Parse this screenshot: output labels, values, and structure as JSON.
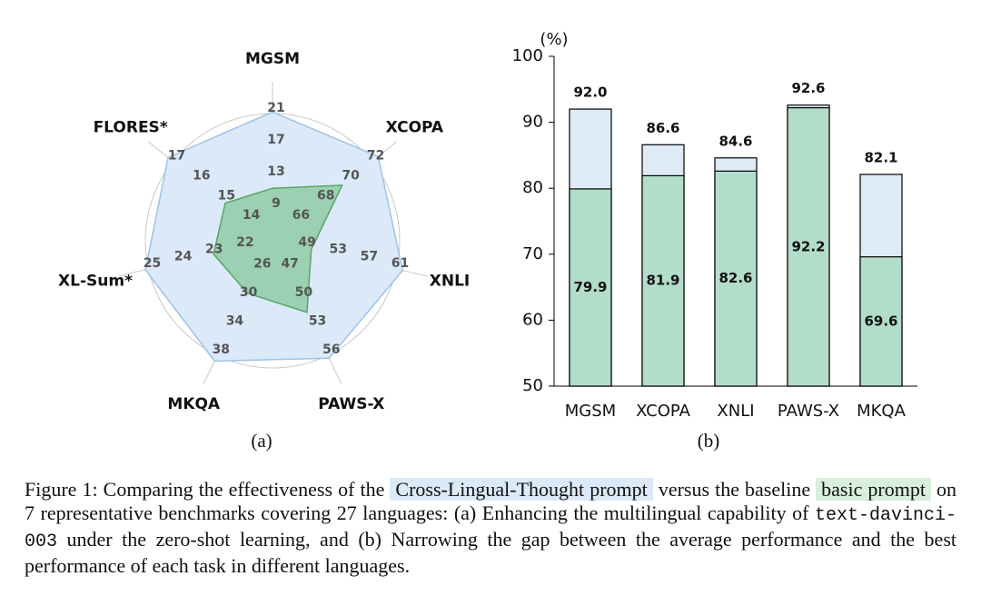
{
  "chart_data": [
    {
      "type": "radar",
      "label": "(a)",
      "categories": [
        "MGSM",
        "XCOPA",
        "XNLI",
        "PAWS-X",
        "MKQA",
        "XL-Sum*",
        "FLORES*"
      ],
      "axes": [
        {
          "lim": [
            5,
            21
          ],
          "ticks": [
            9,
            13,
            17,
            21
          ]
        },
        {
          "lim": [
            64,
            72
          ],
          "ticks": [
            66,
            68,
            70,
            72
          ]
        },
        {
          "lim": [
            45,
            61
          ],
          "ticks": [
            49,
            53,
            57,
            61
          ]
        },
        {
          "lim": [
            44,
            56
          ],
          "ticks": [
            47,
            50,
            53,
            56
          ]
        },
        {
          "lim": [
            22,
            38
          ],
          "ticks": [
            26,
            30,
            34,
            38
          ]
        },
        {
          "lim": [
            21,
            25
          ],
          "ticks": [
            22,
            23,
            24,
            25
          ]
        },
        {
          "lim": [
            13,
            17
          ],
          "ticks": [
            14,
            15,
            16,
            17
          ]
        }
      ],
      "series": [
        {
          "color": "#dbe9f8",
          "stroke": "#9dc3e6",
          "values": [
            21.2,
            72.5,
            61.8,
            56.3,
            38.8,
            25.1,
            17.2
          ]
        },
        {
          "color": "#8fcca6",
          "stroke": "#5aa469",
          "values": [
            11.6,
            69.6,
            50,
            51.5,
            29.3,
            22.9,
            14.9
          ]
        }
      ]
    },
    {
      "type": "bar",
      "label": "(b)",
      "y_unit": "(%)",
      "categories": [
        "MGSM",
        "XCOPA",
        "XNLI",
        "PAWS-X",
        "MKQA"
      ],
      "ylim": [
        50,
        100
      ],
      "yticks": [
        50,
        60,
        70,
        80,
        90,
        100
      ],
      "series": [
        {
          "color": "#deebf7",
          "values": [
            92.0,
            86.6,
            84.6,
            92.6,
            82.1
          ],
          "value_labels": [
            "92.0",
            "86.6",
            "84.6",
            "92.6",
            "82.1"
          ]
        },
        {
          "color": "#b3ddcb",
          "values": [
            79.9,
            81.9,
            82.6,
            92.2,
            69.6
          ]
        }
      ]
    }
  ],
  "caption": {
    "parts": [
      "Figure 1: Comparing the effectiveness of the ",
      "Cross-Lingual-Thought prompt",
      " versus the baseline ",
      "basic prompt",
      " on 7 representative benchmarks covering 27 languages: (a) Enhancing the multilingual capability of ",
      "text-davinci-003",
      " under the zero-shot learning, and (b) Narrowing the gap between the average performance and the best performance of each task in different languages."
    ]
  }
}
